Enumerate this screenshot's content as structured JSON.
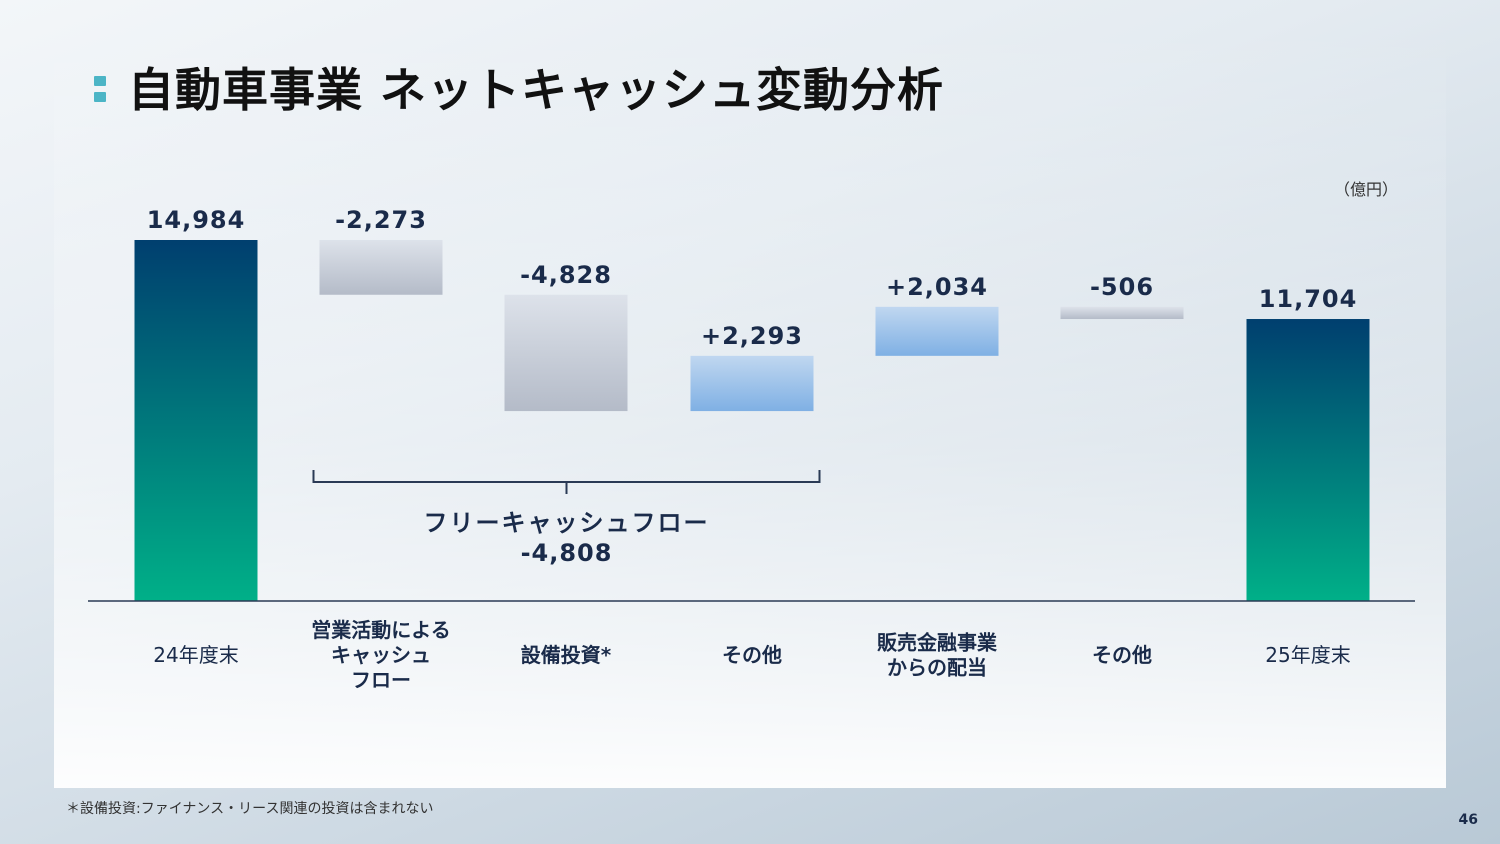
{
  "title": "自動車事業 ネットキャッシュ変動分析",
  "unit": "（億円）",
  "footnote": "＊設備投資:ファイナンス・リース関連の投資は含まれない",
  "page_number": "46",
  "chart_data": {
    "type": "bar",
    "subtype": "waterfall",
    "categories": [
      [
        "24年度末"
      ],
      [
        "営業活動による",
        "キャッシュ",
        "フロー"
      ],
      [
        "設備投資*"
      ],
      [
        "その他"
      ],
      [
        "販売金融事業",
        "からの配当"
      ],
      [
        "その他"
      ],
      [
        "25年度末"
      ]
    ],
    "values": [
      14984,
      -2273,
      -4828,
      2293,
      2034,
      -506,
      11704
    ],
    "value_labels": [
      "14,984",
      "-2,273",
      "-4,828",
      "+2,293",
      "+2,034",
      "-506",
      "11,704"
    ],
    "kinds": [
      "total",
      "decrease",
      "decrease",
      "increase",
      "increase",
      "decrease",
      "total"
    ],
    "ylim": [
      0,
      16000
    ],
    "colors": {
      "total_top": "#003f6f",
      "total_bottom": "#00b088",
      "decrease_top": "#dde2ea",
      "decrease_bottom": "#b4bbc8",
      "increase_top": "#c0d7f0",
      "increase_bottom": "#7fb0e4",
      "label": "#1a2b4a",
      "axis": "#2a3a55"
    },
    "bracket": {
      "from_index": 1,
      "to_index": 3,
      "label": "フリーキャッシュフロー",
      "value": "-4,808"
    }
  }
}
